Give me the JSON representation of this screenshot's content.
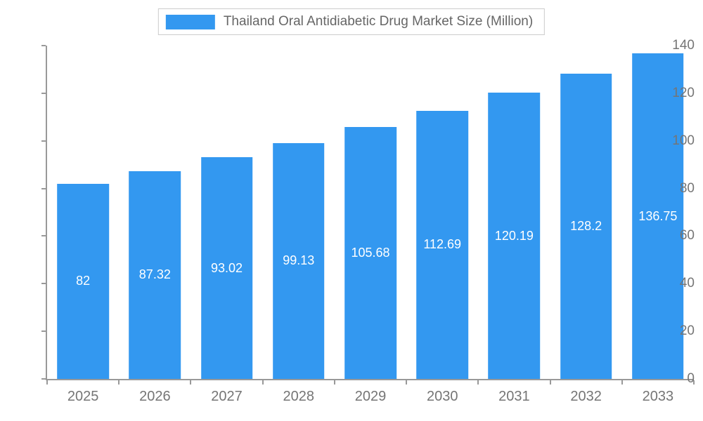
{
  "chart_data": {
    "type": "bar",
    "title": "Thailand Oral Antidiabetic Drug Market Size (Million)",
    "categories": [
      "2025",
      "2026",
      "2027",
      "2028",
      "2029",
      "2030",
      "2031",
      "2032",
      "2033"
    ],
    "values": [
      82,
      87.32,
      93.02,
      99.13,
      105.68,
      112.69,
      120.19,
      128.2,
      136.75
    ],
    "value_labels": [
      "82",
      "87.32",
      "93.02",
      "99.13",
      "105.68",
      "112.69",
      "120.19",
      "128.2",
      "136.75"
    ],
    "xlabel": "",
    "ylabel": "",
    "ylim": [
      0,
      140
    ],
    "yticks": [
      0,
      20,
      40,
      60,
      80,
      100,
      120,
      140
    ],
    "bar_color": "#3398F0",
    "value_label_color": "#ffffff",
    "axis_color": "#999999",
    "tick_label_color": "#757575",
    "legend_position": "top",
    "grid": false
  }
}
